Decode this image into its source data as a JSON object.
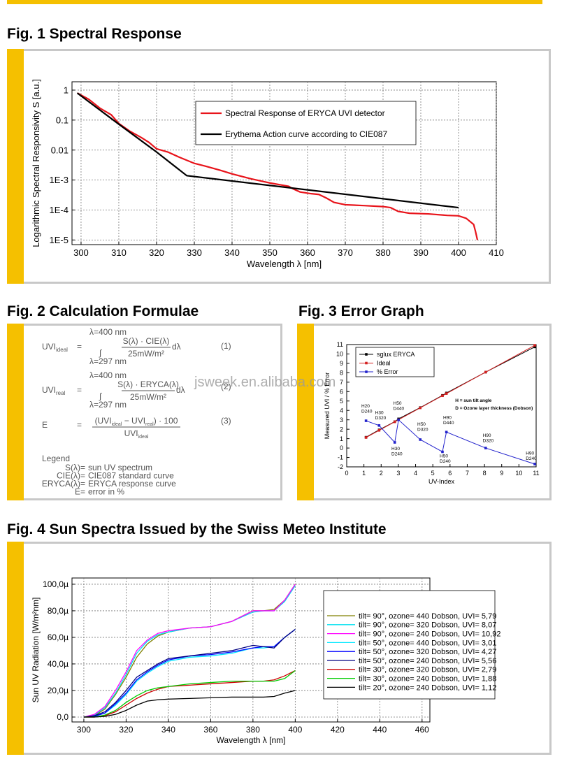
{
  "watermark": "jsweek.en.alibaba.com",
  "formulae": {
    "title": "Fig. 2 Calculation Formulae",
    "equals": "=",
    "integral": "∫",
    "equations": [
      {
        "lhs": "UVI",
        "lhs_sub": "ideal",
        "upper": "λ=400 nm",
        "lower": "λ=297 nm",
        "numerator": "S(λ) · CIE(λ)",
        "denominator": "25mW/m²",
        "tail": "dλ",
        "number": "(1)"
      },
      {
        "lhs": "UVI",
        "lhs_sub": "real",
        "upper": "λ=400 nm",
        "lower": "λ=297 nm",
        "numerator": "S(λ) · ERYCA(λ)",
        "denominator": "25mW/m²",
        "tail": "dλ",
        "number": "(2)"
      }
    ],
    "error_equation": {
      "lhs": "E",
      "n1": "(UVI",
      "n1_sub": "ideal",
      "n2": " − UVI",
      "n2_sub": "real",
      "n3": ") · 100",
      "den": "UVI",
      "den_sub": "ideal",
      "number": "(3)"
    },
    "legend_title": "Legend",
    "legend": [
      [
        "S(λ)=",
        "sun UV spectrum"
      ],
      [
        "CIE(λ)=",
        "CIE087 standard curve"
      ],
      [
        "ERYCA(λ)=",
        "ERYCA response curve"
      ],
      [
        "E=",
        "error in %"
      ]
    ]
  },
  "chart_data": [
    {
      "type": "line",
      "title": "Fig. 1 Spectral Response",
      "x_label": "Wavelength λ [nm]",
      "y_label": "Logarithmic Spectral Responsivity S [a.u.]",
      "log_y": true,
      "grid": true,
      "markers": false,
      "xlim": [
        297.6,
        410
      ],
      "ylim": [
        7e-06,
        1.9
      ],
      "xticks": [
        300,
        310,
        320,
        330,
        340,
        350,
        360,
        370,
        380,
        390,
        400,
        410
      ],
      "yticks": [
        1,
        0.1,
        0.01,
        {
          "value": 0.001,
          "label": "1E-3"
        },
        {
          "value": 0.0001,
          "label": "1E-4"
        },
        {
          "value": 1e-05,
          "label": "1E-5"
        }
      ],
      "series": [
        {
          "name": "Spectral Response of ERYCA UVI detector",
          "color": "#e8141b",
          "x": [
            299,
            302,
            305,
            308,
            310,
            313,
            316,
            318,
            320,
            323,
            326,
            330,
            333,
            337,
            340,
            345,
            350,
            355,
            356,
            358,
            361,
            363,
            365,
            367,
            370,
            375,
            380,
            382,
            384,
            387,
            392,
            397,
            400,
            402,
            404,
            404.5,
            405
          ],
          "values": [
            0.8,
            0.5,
            0.25,
            0.15,
            0.077,
            0.042,
            0.026,
            0.018,
            0.011,
            0.0086,
            0.0058,
            0.0036,
            0.0029,
            0.0021,
            0.0016,
            0.0011,
            0.0008,
            0.00062,
            0.00052,
            0.0004,
            0.00035,
            0.00033,
            0.00025,
            0.00018,
            0.00015,
            0.00014,
            0.00013,
            0.00012,
            9e-05,
            7.8e-05,
            7.4e-05,
            6.6e-05,
            6.4e-05,
            5.3e-05,
            3.3e-05,
            1.9e-05,
            1e-05
          ]
        },
        {
          "name": "Erythema Action curve according to CIE087",
          "color": "#000000",
          "x": [
            299,
            310,
            320,
            328,
            400
          ],
          "values": [
            0.8,
            0.073,
            0.0086,
            0.0014,
            0.00012
          ]
        }
      ]
    },
    {
      "type": "line",
      "title": "Fig. 3 Error Graph",
      "x_label": "UV-Index",
      "y_label": "Measured UVI / % Error",
      "log_y": false,
      "grid": false,
      "markers": true,
      "xlim": [
        0,
        11
      ],
      "ylim": [
        -2,
        11
      ],
      "xticks": [
        0,
        1,
        2,
        3,
        4,
        5,
        6,
        7,
        8,
        9,
        10,
        11
      ],
      "yticks": [
        -2,
        -1,
        0,
        1,
        2,
        3,
        4,
        5,
        6,
        7,
        8,
        9,
        10,
        11
      ],
      "series": [
        {
          "name": "sglux ERYCA",
          "color": "#000000",
          "x": [
            1.12,
            1.88,
            2.79,
            3.01,
            4.27,
            5.56,
            5.79,
            8.07,
            10.92
          ],
          "values": [
            1.15,
            1.93,
            2.8,
            3.1,
            4.3,
            5.6,
            5.85,
            8.07,
            10.75
          ]
        },
        {
          "name": "Ideal",
          "color": "#d42020",
          "x": [
            1.12,
            1.88,
            2.79,
            3.01,
            4.27,
            5.56,
            5.79,
            8.07,
            10.92
          ],
          "values": [
            1.12,
            1.88,
            2.79,
            3.01,
            4.27,
            5.56,
            5.79,
            8.07,
            10.92
          ]
        },
        {
          "name": "% Error",
          "color": "#2222cc",
          "x": [
            1.12,
            1.88,
            2.79,
            3.01,
            4.27,
            5.56,
            5.79,
            8.07,
            10.92
          ],
          "values": [
            2.9,
            2.4,
            0.6,
            3.0,
            0.9,
            -0.4,
            1.7,
            0.0,
            -1.7
          ]
        }
      ],
      "annotations": [
        [
          "H20",
          "D240"
        ],
        [
          "H30",
          "D320"
        ],
        [
          "H50",
          "D440"
        ],
        [
          "H30",
          "D240"
        ],
        [
          "H50",
          "D320"
        ],
        [
          "H90",
          "D440"
        ],
        [
          "H50",
          "D240"
        ],
        [
          "H90",
          "D320"
        ],
        [
          "H90",
          "D240"
        ]
      ],
      "notes": [
        "H = sun tilt angle",
        "D = Ozone layer thickness (Dobson)"
      ]
    },
    {
      "type": "line",
      "title": "Fig. 4 Sun Spectra Issued by the Swiss Meteo Institute",
      "x_label": "Wavelength λ [nm]",
      "y_label": "Sun UV Radiation [W/m²nm]",
      "log_y": false,
      "grid": true,
      "markers": false,
      "xlim": [
        294.4,
        463.7
      ],
      "ylim": [
        -3.7,
        104.7
      ],
      "xticks": [
        300,
        320,
        340,
        360,
        380,
        400,
        420,
        440,
        460
      ],
      "yticks": [
        {
          "value": 0,
          "label": "0,0"
        },
        {
          "value": 20,
          "label": "20,0µ"
        },
        {
          "value": 40,
          "label": "40,0µ"
        },
        {
          "value": 60,
          "label": "60,0µ"
        },
        {
          "value": 80,
          "label": "80,0µ"
        },
        {
          "value": 100,
          "label": "100,0µ"
        }
      ],
      "x": [
        300,
        305,
        310,
        315,
        320,
        325,
        330,
        335,
        340,
        350,
        360,
        370,
        380,
        385,
        390,
        395,
        400
      ],
      "series": [
        {
          "name": "tilt= 90°, ozone= 440 Dobson, UVI= 5,79",
          "color": "#808000",
          "values": [
            0,
            1,
            6,
            17,
            30,
            45,
            55,
            61,
            64,
            67,
            68,
            72,
            80,
            80,
            81,
            88,
            100
          ]
        },
        {
          "name": "tilt= 90°, ozone= 320 Dobson, UVI= 8,07",
          "color": "#00e0f0",
          "values": [
            0,
            1.5,
            7,
            18,
            32,
            48,
            57,
            62,
            64,
            67,
            68,
            72,
            79,
            80,
            80,
            87,
            99
          ]
        },
        {
          "name": "tilt= 90°, ozone= 240 Dobson, UVI= 10,92",
          "color": "#ff00ff",
          "values": [
            0,
            2,
            8,
            20,
            34,
            50,
            58,
            63,
            65,
            67,
            68,
            72,
            80,
            80,
            80,
            88,
            100
          ]
        },
        {
          "name": "tilt= 50°, ozone= 440 Dobson, UVI= 3,01",
          "color": "#00e8ff",
          "values": [
            0,
            0.5,
            3,
            9,
            17,
            27,
            33,
            38,
            42,
            45,
            46,
            48,
            52,
            52,
            53,
            60,
            66
          ]
        },
        {
          "name": "tilt= 50°, ozone= 320 Dobson, UVI= 4,27",
          "color": "#0000ff",
          "values": [
            0,
            0.5,
            3,
            10,
            18,
            28,
            34,
            39,
            43,
            46,
            47,
            49,
            52,
            53,
            53,
            60,
            66
          ]
        },
        {
          "name": "tilt= 50°, ozone= 240 Dobson, UVI= 5,56",
          "color": "#000080",
          "values": [
            0,
            1,
            4,
            11,
            20,
            30,
            35,
            40,
            44,
            46,
            48,
            50,
            54,
            53,
            52,
            60,
            66
          ]
        },
        {
          "name": "tilt= 30°, ozone= 320 Dobson, UVI= 2,79",
          "color": "#cc0000",
          "values": [
            0,
            0,
            1,
            4,
            9,
            14,
            18,
            21,
            23,
            24,
            25,
            26,
            27,
            27,
            28,
            31,
            35
          ]
        },
        {
          "name": "tilt= 30°, ozone= 240 Dobson, UVI= 1,88",
          "color": "#00cc00",
          "values": [
            0,
            0,
            1.5,
            5,
            11,
            16,
            20,
            22,
            23,
            25,
            26,
            27,
            27,
            27,
            27,
            29,
            35
          ]
        },
        {
          "name": "tilt= 20°, ozone= 240 Dobson, UVI= 1,12",
          "color": "#000000",
          "values": [
            0,
            0,
            0.5,
            2,
            5,
            9,
            12,
            13,
            13.5,
            14,
            14.5,
            15,
            15,
            15,
            15.5,
            18,
            20
          ]
        }
      ]
    }
  ]
}
